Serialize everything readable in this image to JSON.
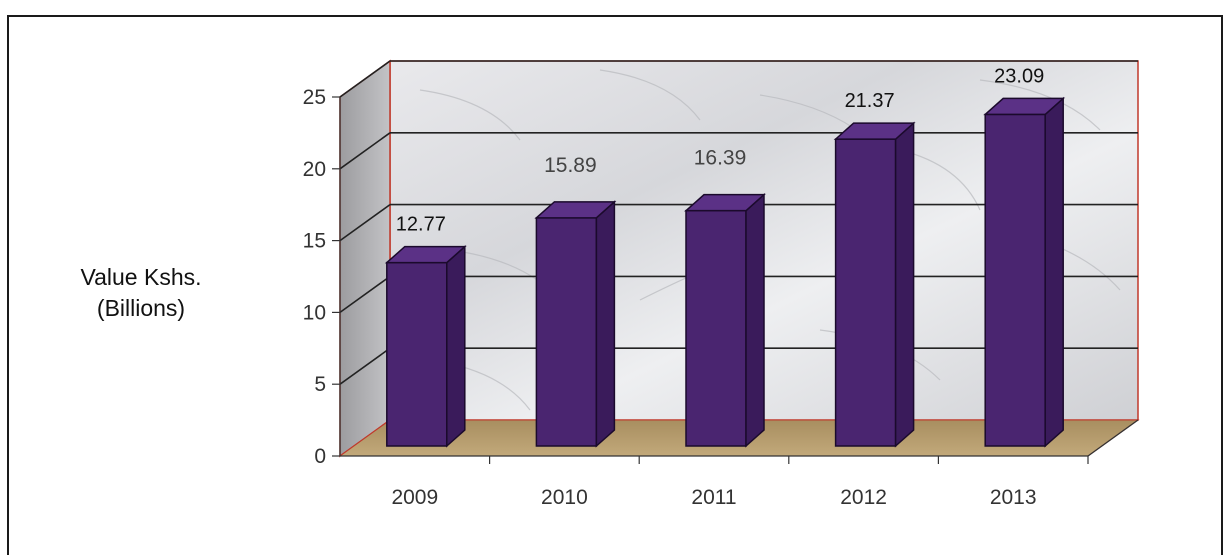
{
  "chart_data": {
    "type": "bar",
    "title": "",
    "xlabel": "",
    "ylabel": "Value Kshs. (Billions)",
    "ylabel_lines": [
      "Value Kshs.",
      "(Billions)"
    ],
    "categories": [
      "2009",
      "2010",
      "2011",
      "2012",
      "2013"
    ],
    "values": [
      12.77,
      15.89,
      16.39,
      21.37,
      23.09
    ],
    "data_labels": [
      "12.77",
      "15.89",
      "16.39",
      "21.37",
      "23.09"
    ],
    "ylim": [
      0,
      25
    ],
    "yticks": [
      0,
      5,
      10,
      15,
      20,
      25
    ],
    "grid": true,
    "style": "3d",
    "colors": {
      "bar": "#4a2570",
      "floor": "#b39a6e",
      "wall_edge": "#c0392b"
    }
  }
}
